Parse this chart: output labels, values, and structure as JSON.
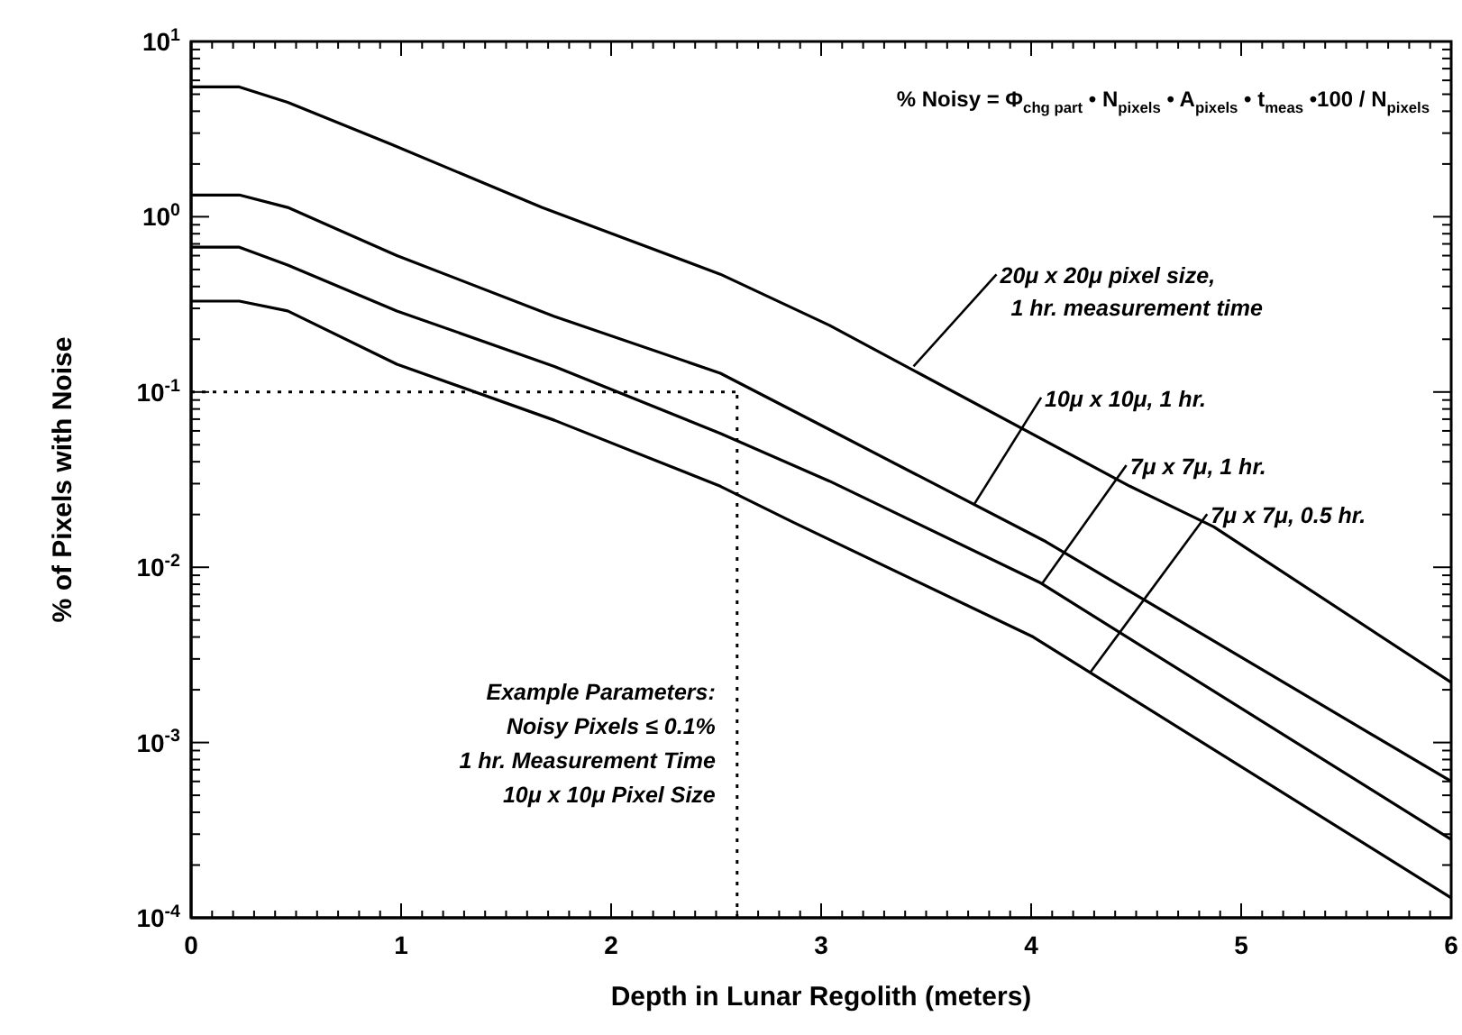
{
  "chart_data": {
    "type": "line",
    "xlabel": "Depth in Lunar Regolith (meters)",
    "ylabel": "% of Pixels with Noise",
    "log": "y",
    "marker": "none",
    "line_style": "solid",
    "xlim": [
      0,
      6
    ],
    "ylim": [
      0.0001,
      10
    ],
    "xticks": [
      0,
      {
        "value": 0.1,
        "label": null
      },
      {
        "value": 0.2,
        "label": null
      },
      {
        "value": 0.3,
        "label": null
      },
      {
        "value": 0.4,
        "label": null
      },
      {
        "value": 0.5,
        "label": null
      },
      {
        "value": 0.6,
        "label": null
      },
      {
        "value": 0.7,
        "label": null
      },
      {
        "value": 0.8,
        "label": null
      },
      {
        "value": 0.9,
        "label": null
      },
      1,
      {
        "value": 1.1,
        "label": null
      },
      {
        "value": 1.2,
        "label": null
      },
      {
        "value": 1.3,
        "label": null
      },
      {
        "value": 1.4,
        "label": null
      },
      {
        "value": 1.5,
        "label": null
      },
      {
        "value": 1.6,
        "label": null
      },
      {
        "value": 1.7,
        "label": null
      },
      {
        "value": 1.8,
        "label": null
      },
      {
        "value": 1.9,
        "label": null
      },
      2,
      {
        "value": 2.1,
        "label": null
      },
      {
        "value": 2.2,
        "label": null
      },
      {
        "value": 2.3,
        "label": null
      },
      {
        "value": 2.4,
        "label": null
      },
      {
        "value": 2.5,
        "label": null
      },
      {
        "value": 2.6,
        "label": null
      },
      {
        "value": 2.7,
        "label": null
      },
      {
        "value": 2.8,
        "label": null
      },
      {
        "value": 2.9,
        "label": null
      },
      3,
      {
        "value": 3.1,
        "label": null
      },
      {
        "value": 3.2,
        "label": null
      },
      {
        "value": 3.3,
        "label": null
      },
      {
        "value": 3.4,
        "label": null
      },
      {
        "value": 3.5,
        "label": null
      },
      {
        "value": 3.6,
        "label": null
      },
      {
        "value": 3.7,
        "label": null
      },
      {
        "value": 3.8,
        "label": null
      },
      {
        "value": 3.9,
        "label": null
      },
      4,
      {
        "value": 4.1,
        "label": null
      },
      {
        "value": 4.2,
        "label": null
      },
      {
        "value": 4.3,
        "label": null
      },
      {
        "value": 4.4,
        "label": null
      },
      {
        "value": 4.5,
        "label": null
      },
      {
        "value": 4.6,
        "label": null
      },
      {
        "value": 4.7,
        "label": null
      },
      {
        "value": 4.8,
        "label": null
      },
      {
        "value": 4.9,
        "label": null
      },
      5,
      {
        "value": 5.1,
        "label": null
      },
      {
        "value": 5.2,
        "label": null
      },
      {
        "value": 5.3,
        "label": null
      },
      {
        "value": 5.4,
        "label": null
      },
      {
        "value": 5.5,
        "label": null
      },
      {
        "value": 5.6,
        "label": null
      },
      {
        "value": 5.7,
        "label": null
      },
      {
        "value": 5.8,
        "label": null
      },
      {
        "value": 5.9,
        "label": null
      },
      6
    ],
    "yticks": [
      {
        "value": 0.0001,
        "label": "10$^{-4}$"
      },
      {
        "value": 0.0002,
        "label": null
      },
      {
        "value": 0.0003,
        "label": null
      },
      {
        "value": 0.0004,
        "label": null
      },
      {
        "value": 0.0005,
        "label": null
      },
      {
        "value": 0.0006,
        "label": null
      },
      {
        "value": 0.0007,
        "label": null
      },
      {
        "value": 0.0008,
        "label": null
      },
      {
        "value": 0.0009,
        "label": null
      },
      {
        "value": 0.001,
        "label": "10$^{-3}$"
      },
      {
        "value": 0.002,
        "label": null
      },
      {
        "value": 0.003,
        "label": null
      },
      {
        "value": 0.004,
        "label": null
      },
      {
        "value": 0.005,
        "label": null
      },
      {
        "value": 0.006,
        "label": null
      },
      {
        "value": 0.007,
        "label": null
      },
      {
        "value": 0.008,
        "label": null
      },
      {
        "value": 0.009,
        "label": null
      },
      {
        "value": 0.01,
        "label": "10$^{-2}$"
      },
      {
        "value": 0.02,
        "label": null
      },
      {
        "value": 0.03,
        "label": null
      },
      {
        "value": 0.04,
        "label": null
      },
      {
        "value": 0.05,
        "label": null
      },
      {
        "value": 0.06,
        "label": null
      },
      {
        "value": 0.07,
        "label": null
      },
      {
        "value": 0.08,
        "label": null
      },
      {
        "value": 0.09,
        "label": null
      },
      {
        "value": 0.1,
        "label": "10$^{-1}$"
      },
      {
        "value": 0.2,
        "label": null
      },
      {
        "value": 0.3,
        "label": null
      },
      {
        "value": 0.4,
        "label": null
      },
      {
        "value": 0.5,
        "label": null
      },
      {
        "value": 0.6,
        "label": null
      },
      {
        "value": 0.7,
        "label": null
      },
      {
        "value": 0.8,
        "label": null
      },
      {
        "value": 0.9,
        "label": null
      },
      {
        "value": 1,
        "label": "10$^{0}$"
      },
      {
        "value": 2,
        "label": null
      },
      {
        "value": 3,
        "label": null
      },
      {
        "value": 4,
        "label": null
      },
      {
        "value": 5,
        "label": null
      },
      {
        "value": 6,
        "label": null
      },
      {
        "value": 7,
        "label": null
      },
      {
        "value": 8,
        "label": null
      },
      {
        "value": 9,
        "label": null
      },
      {
        "value": 10,
        "label": "10$^{1}$"
      }
    ],
    "series": [
      {
        "color": "#000000",
        "x": [
          0,
          0.23,
          0.46,
          0.95,
          1.67,
          2.52,
          3.04,
          4.47,
          4.87,
          6
        ],
        "values": [
          5.5,
          5.5,
          4.5,
          2.6,
          1.13,
          0.47,
          0.24,
          0.029,
          0.017,
          0.0022
        ]
      },
      {
        "color": "#000000",
        "x": [
          0,
          0.23,
          0.46,
          0.98,
          1.73,
          2.52,
          3.04,
          4.07,
          6
        ],
        "values": [
          1.33,
          1.33,
          1.13,
          0.6,
          0.27,
          0.128,
          0.061,
          0.014,
          0.0006
        ]
      },
      {
        "color": "#000000",
        "x": [
          0,
          0.23,
          0.46,
          0.98,
          1.73,
          2.52,
          3.04,
          4.04,
          6
        ],
        "values": [
          0.67,
          0.67,
          0.53,
          0.29,
          0.14,
          0.058,
          0.031,
          0.0082,
          0.00028
        ]
      },
      {
        "color": "#000000",
        "x": [
          0,
          0.23,
          0.46,
          0.98,
          1.73,
          2.52,
          2.87,
          4.01,
          6
        ],
        "values": [
          0.33,
          0.33,
          0.29,
          0.144,
          0.069,
          0.029,
          0.018,
          0.004,
          0.00013
        ]
      }
    ],
    "ref_lines": [
      {
        "axis": "y",
        "value": 0.1,
        "line_style": "dotted",
        "color": "#000000"
      },
      {
        "axis": "x",
        "value": 2.6,
        "line_style": "dotted",
        "color": "#000000"
      }
    ],
    "annotations": [
      "% Noisy = Φ$_{chg part}$ • N$_{pixels}$ • A$_{pixels}$ • t$_{meas}$ •100 / N$_{pixels}$",
      "Example Parameters:\nNoisy Pixels ≤ 0.1%\n1 hr. Measurement Time\n10μ x 10μ Pixel Size",
      {
        "text": "20μ x 20μ pixel size,\n1 hr. measurement time",
        "x": 3.44,
        "y": 0.14
      },
      {
        "text": "10μ x 10μ, 1 hr.",
        "x": 3.73,
        "y": 0.023
      },
      {
        "text": "7μ x 7μ, 1 hr.",
        "x": 4.05,
        "y": 0.008
      },
      {
        "text": "7μ x 7μ, 0.5 hr.",
        "x": 4.28,
        "y": 0.0025
      }
    ]
  }
}
